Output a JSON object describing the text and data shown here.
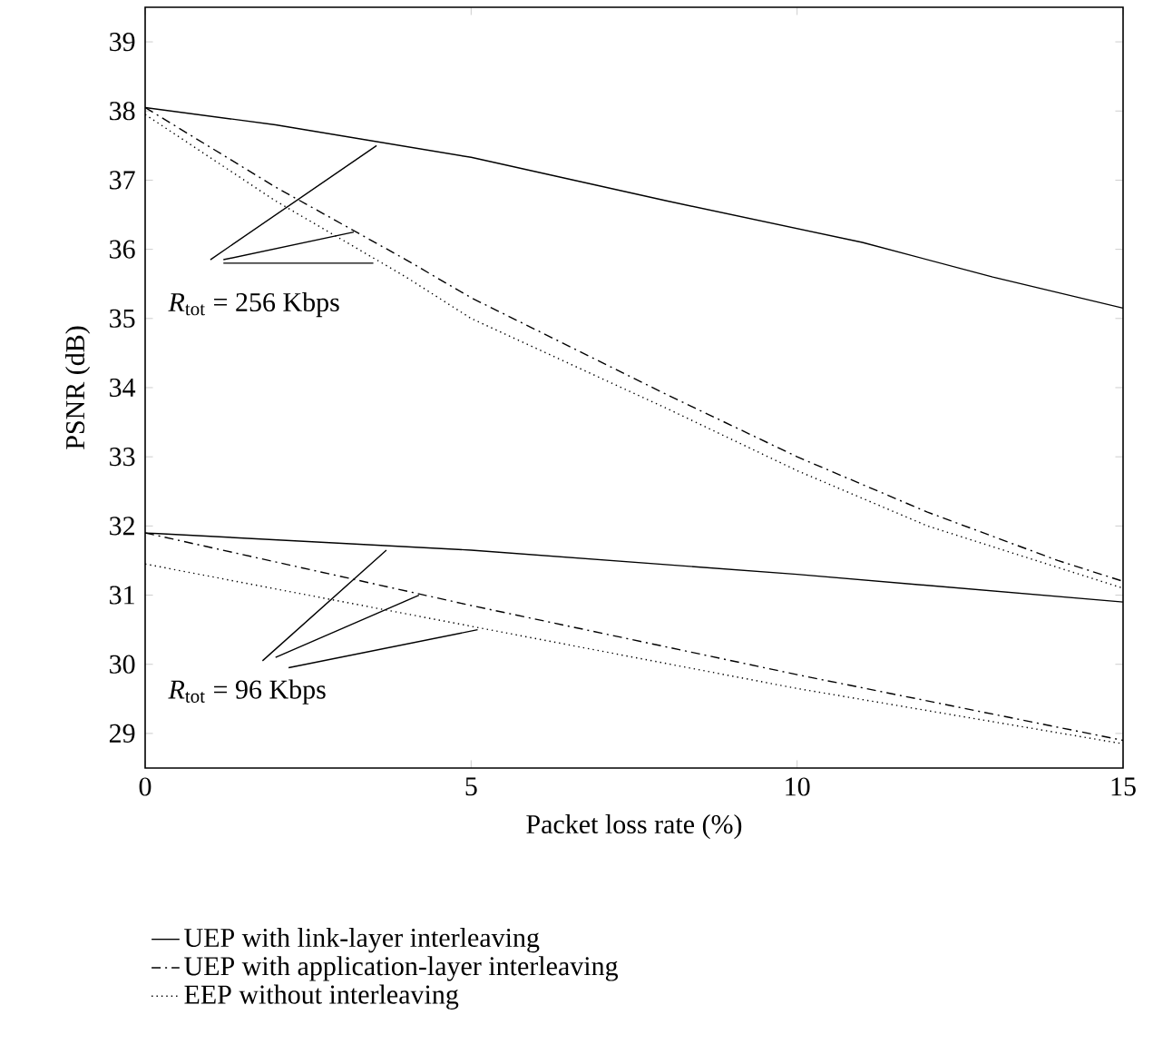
{
  "chart_data": {
    "type": "line",
    "xlabel": "Packet loss rate (%)",
    "ylabel": "PSNR (dB)",
    "xlim": [
      0,
      15
    ],
    "ylim": [
      28.5,
      39.5
    ],
    "xticks": [
      0,
      5,
      10,
      15
    ],
    "yticks": [
      29,
      30,
      31,
      32,
      33,
      34,
      35,
      36,
      37,
      38,
      39
    ],
    "grid": false,
    "legend": "bottom",
    "marker": "none",
    "series": [
      {
        "name": "UEP with link-layer interleaving",
        "color": "#000000",
        "line_style": "solid",
        "x": [
          0,
          2,
          5,
          8,
          11,
          13,
          15
        ],
        "values": [
          38.05,
          37.8,
          37.33,
          36.7,
          36.1,
          35.6,
          35.15
        ]
      },
      {
        "name": "UEP with application-layer interleaving",
        "color": "#000000",
        "line_style": "dashdot",
        "x": [
          0,
          2,
          4,
          5,
          8,
          10,
          12,
          14,
          15
        ],
        "values": [
          38.05,
          36.9,
          35.85,
          35.3,
          33.9,
          33.0,
          32.2,
          31.5,
          31.2
        ]
      },
      {
        "name": "EEP without interleaving",
        "color": "#000000",
        "line_style": "dotted",
        "x": [
          0,
          2,
          4,
          5,
          8,
          10,
          12,
          14,
          15
        ],
        "values": [
          37.95,
          36.7,
          35.6,
          35.0,
          33.7,
          32.8,
          32.0,
          31.4,
          31.1
        ]
      },
      {
        "color": "#000000",
        "line_style": "solid",
        "x": [
          0,
          5,
          10,
          15
        ],
        "values": [
          31.9,
          31.65,
          31.3,
          30.9
        ]
      },
      {
        "color": "#000000",
        "line_style": "dashdot",
        "x": [
          0,
          5,
          10,
          15
        ],
        "values": [
          31.9,
          30.85,
          29.85,
          28.9
        ]
      },
      {
        "color": "#000000",
        "line_style": "dotted",
        "x": [
          0,
          5,
          10,
          15
        ],
        "values": [
          31.45,
          30.55,
          29.65,
          28.85
        ]
      }
    ],
    "annotations": [
      {
        "text": "*R*$_{tot}$ = 256 Kbps",
        "x": 3.55,
        "y": 37.5
      },
      {
        "text": "*R*$_{tot}$ = 96 Kbps",
        "x": 3.7,
        "y": 31.65
      }
    ]
  }
}
